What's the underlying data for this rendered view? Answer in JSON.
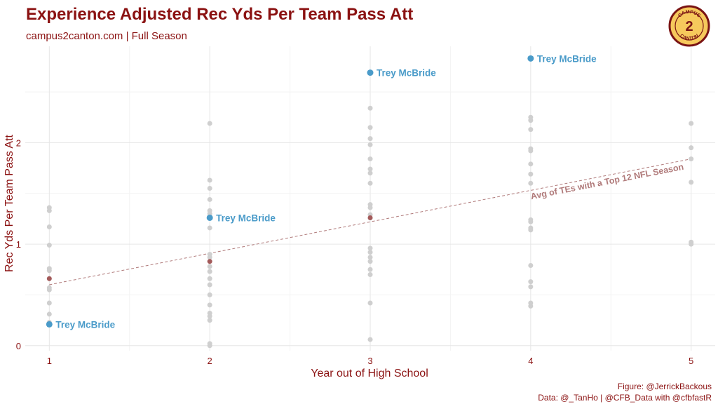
{
  "header": {
    "title": "Experience Adjusted Rec Yds Per Team Pass Att",
    "subtitle": "campus2canton.com | Full Season"
  },
  "caption": {
    "line1": "Figure: @JerrickBackous",
    "line2": "Data: @_TanHo | @CFB_Data with @cfbfastR"
  },
  "logo": {
    "text": "CAMPUS",
    "mark": "2",
    "text2": "CANTON"
  },
  "colors": {
    "accent": "#8b1212",
    "highlight": "#4a9bc9",
    "background_points": "#cfcfcf",
    "average": "#a35a5a",
    "trend": "#b07a7a",
    "logo_fill": "#f6c95c"
  },
  "chart_data": {
    "type": "scatter",
    "title": "Experience Adjusted Rec Yds Per Team Pass Att",
    "xlabel": "Year out of High School",
    "ylabel": "Rec Yds Per Team Pass Att",
    "xlim": [
      0.85,
      5.15
    ],
    "ylim": [
      -0.05,
      2.95
    ],
    "x_ticks": [
      1,
      2,
      3,
      4,
      5
    ],
    "y_ticks": [
      0,
      1,
      2
    ],
    "grid": true,
    "series": [
      {
        "name": "TEs with a Top 12 NFL Season",
        "points": [
          [
            1,
            1.36
          ],
          [
            1,
            1.33
          ],
          [
            1,
            1.17
          ],
          [
            1,
            0.99
          ],
          [
            1,
            0.76
          ],
          [
            1,
            0.74
          ],
          [
            1,
            0.57
          ],
          [
            1,
            0.55
          ],
          [
            1,
            0.42
          ],
          [
            1,
            0.31
          ],
          [
            1,
            0.23
          ],
          [
            2,
            2.19
          ],
          [
            2,
            1.63
          ],
          [
            2,
            1.55
          ],
          [
            2,
            1.44
          ],
          [
            2,
            1.33
          ],
          [
            2,
            1.3
          ],
          [
            2,
            1.16
          ],
          [
            2,
            0.9
          ],
          [
            2,
            0.87
          ],
          [
            2,
            0.78
          ],
          [
            2,
            0.73
          ],
          [
            2,
            0.66
          ],
          [
            2,
            0.6
          ],
          [
            2,
            0.5
          ],
          [
            2,
            0.4
          ],
          [
            2,
            0.32
          ],
          [
            2,
            0.29
          ],
          [
            2,
            0.25
          ],
          [
            2,
            0.02
          ],
          [
            2,
            0.0
          ],
          [
            3,
            2.34
          ],
          [
            3,
            2.15
          ],
          [
            3,
            2.04
          ],
          [
            3,
            1.98
          ],
          [
            3,
            1.84
          ],
          [
            3,
            1.74
          ],
          [
            3,
            1.7
          ],
          [
            3,
            1.6
          ],
          [
            3,
            1.39
          ],
          [
            3,
            1.36
          ],
          [
            3,
            1.29
          ],
          [
            3,
            0.96
          ],
          [
            3,
            0.92
          ],
          [
            3,
            0.87
          ],
          [
            3,
            0.83
          ],
          [
            3,
            0.75
          ],
          [
            3,
            0.7
          ],
          [
            3,
            0.42
          ],
          [
            3,
            0.06
          ],
          [
            4,
            2.25
          ],
          [
            4,
            2.22
          ],
          [
            4,
            2.13
          ],
          [
            4,
            1.94
          ],
          [
            4,
            1.92
          ],
          [
            4,
            1.79
          ],
          [
            4,
            1.69
          ],
          [
            4,
            1.6
          ],
          [
            4,
            1.24
          ],
          [
            4,
            1.22
          ],
          [
            4,
            1.16
          ],
          [
            4,
            1.14
          ],
          [
            4,
            0.79
          ],
          [
            4,
            0.63
          ],
          [
            4,
            0.58
          ],
          [
            4,
            0.42
          ],
          [
            4,
            0.39
          ],
          [
            5,
            2.19
          ],
          [
            5,
            1.95
          ],
          [
            5,
            1.84
          ],
          [
            5,
            1.61
          ],
          [
            5,
            1.02
          ],
          [
            5,
            1.0
          ]
        ]
      },
      {
        "name": "Avg of TEs with a Top 12 NFL Season",
        "points": [
          [
            1,
            0.66
          ],
          [
            2,
            0.83
          ],
          [
            3,
            1.26
          ]
        ]
      },
      {
        "name": "Trey McBride",
        "points": [
          [
            1,
            0.21
          ],
          [
            2,
            1.26
          ],
          [
            3,
            2.69
          ],
          [
            4,
            2.83
          ]
        ],
        "labels": [
          "Trey McBride",
          "Trey McBride",
          "Trey McBride",
          "Trey McBride"
        ]
      }
    ],
    "trendline": {
      "label": "Avg of TEs with a Top 12 NFL Season",
      "from": [
        1,
        0.6
      ],
      "to": [
        5,
        1.84
      ]
    }
  }
}
